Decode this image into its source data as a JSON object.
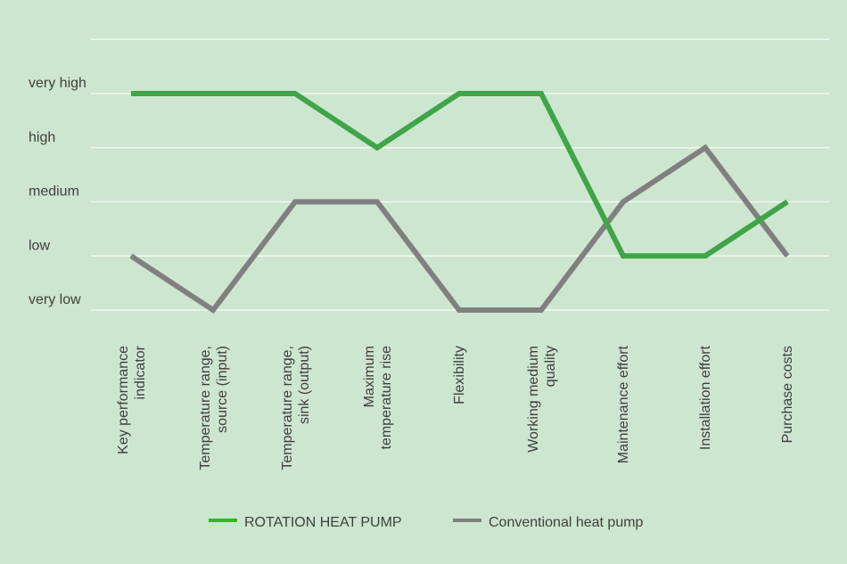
{
  "chart_data": {
    "type": "line",
    "categories": [
      [
        "Key performance",
        "indicator"
      ],
      [
        "Temperature range,",
        "source (input)"
      ],
      [
        "Temperature range,",
        "sink (output)"
      ],
      [
        "Maximum",
        "temperature rise"
      ],
      [
        "Flexibility"
      ],
      [
        "Working medium",
        "quality"
      ],
      [
        "Maintenance effort"
      ],
      [
        "Installation effort"
      ],
      [
        "Purchase costs"
      ]
    ],
    "y_levels": [
      "very low",
      "low",
      "medium",
      "high",
      "very high"
    ],
    "ylim": [
      0,
      5
    ],
    "grid": true,
    "legend_position": "bottom",
    "series": [
      {
        "name": "ROTATION HEAT PUMP",
        "color": "#3fa548",
        "legend_color": "#19c41c",
        "values": [
          5,
          5,
          5,
          4,
          5,
          5,
          2,
          2,
          3
        ]
      },
      {
        "name": "Conventional heat pump",
        "color": "#808080",
        "legend_color": "#808080",
        "values": [
          2,
          1,
          3,
          3,
          1,
          1,
          3,
          4,
          2
        ]
      }
    ]
  }
}
